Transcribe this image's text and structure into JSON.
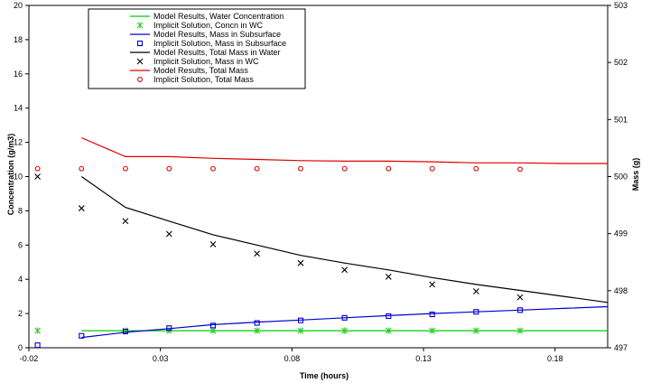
{
  "chart_data": {
    "type": "line",
    "xlabel": "Time (hours)",
    "ylabel_left": "Concentration (g/m3)",
    "ylabel_right": "Mass (g)",
    "xlim": [
      -0.02,
      0.2
    ],
    "ylim_left": [
      0,
      20
    ],
    "ylim_right": [
      497,
      503
    ],
    "x_ticks": [
      -0.02,
      0.03,
      0.08,
      0.13,
      0.18
    ],
    "x_tick_labels": [
      "-0.02",
      "0.03",
      "0.08",
      "0.13",
      "0.18"
    ],
    "y_left_ticks": [
      0,
      2,
      4,
      6,
      8,
      10,
      12,
      14,
      16,
      18,
      20
    ],
    "y_left_tick_labels": [
      "0",
      "2",
      "4",
      "6",
      "8",
      "10",
      "12",
      "14",
      "16",
      "18",
      "20"
    ],
    "y_right_ticks": [
      497,
      498,
      499,
      500,
      501,
      502,
      503
    ],
    "y_right_tick_labels": [
      "497",
      "498",
      "499",
      "500",
      "501",
      "502",
      "503"
    ],
    "legend_position": "top-left",
    "grid": false,
    "series": [
      {
        "name": "Model Results, Water Concentration",
        "kind": "line",
        "axis": "left",
        "color": "#00cc00",
        "x": [
          0,
          0.0167,
          0.0333,
          0.05,
          0.0667,
          0.0833,
          0.1,
          0.1167,
          0.1333,
          0.15,
          0.1667,
          0.1833,
          0.2
        ],
        "y": [
          1.0,
          1.0,
          1.0,
          1.0,
          1.0,
          1.0,
          1.0,
          1.0,
          1.0,
          1.0,
          1.0,
          1.0,
          1.0
        ]
      },
      {
        "name": "Implicit Solution, Concn in WC",
        "kind": "marker",
        "marker": "asterisk",
        "axis": "left",
        "color": "#33cc33",
        "x": [
          -0.0167,
          0.0167,
          0.0333,
          0.05,
          0.0667,
          0.0833,
          0.1,
          0.1167,
          0.1333,
          0.15,
          0.1667
        ],
        "y": [
          1.0,
          1.0,
          1.0,
          1.0,
          1.0,
          1.0,
          1.0,
          1.0,
          1.0,
          1.0,
          1.0
        ]
      },
      {
        "name": "Model Results, Mass in Subsurface",
        "kind": "line",
        "axis": "left",
        "color": "#0000cc",
        "x": [
          0,
          0.0167,
          0.0333,
          0.05,
          0.0667,
          0.0833,
          0.1,
          0.1167,
          0.1333,
          0.15,
          0.1667,
          0.1833,
          0.2
        ],
        "y": [
          0.6,
          0.9,
          1.12,
          1.35,
          1.5,
          1.62,
          1.75,
          1.88,
          2.0,
          2.1,
          2.2,
          2.3,
          2.4
        ]
      },
      {
        "name": "Implicit Solution, Mass in Subsurface",
        "kind": "marker",
        "marker": "square",
        "axis": "left",
        "color": "#0000cc",
        "x": [
          -0.0167,
          0,
          0.0167,
          0.0333,
          0.05,
          0.0667,
          0.0833,
          0.1,
          0.1167,
          0.1333,
          0.15,
          0.1667
        ],
        "y": [
          0.15,
          0.7,
          0.95,
          1.15,
          1.3,
          1.45,
          1.6,
          1.75,
          1.85,
          1.95,
          2.1,
          2.2
        ]
      },
      {
        "name": "Model Results, Total Mass in Water",
        "kind": "line",
        "axis": "left",
        "color": "#000000",
        "x": [
          0,
          0.0167,
          0.0333,
          0.05,
          0.0667,
          0.0833,
          0.1,
          0.1167,
          0.1333,
          0.15,
          0.1667,
          0.1833,
          0.2
        ],
        "y": [
          10.0,
          8.2,
          7.4,
          6.6,
          6.0,
          5.4,
          4.95,
          4.55,
          4.1,
          3.7,
          3.35,
          3.0,
          2.65
        ]
      },
      {
        "name": "Implicit Solution, Mass in WC",
        "kind": "marker",
        "marker": "x",
        "axis": "left",
        "color": "#000000",
        "x": [
          -0.0167,
          0,
          0.0167,
          0.0333,
          0.05,
          0.0667,
          0.0833,
          0.1,
          0.1167,
          0.1333,
          0.15,
          0.1667
        ],
        "y": [
          10.0,
          8.15,
          7.4,
          6.65,
          6.05,
          5.5,
          4.95,
          4.55,
          4.15,
          3.7,
          3.3,
          2.95
        ]
      },
      {
        "name": "Model Results, Total Mass",
        "kind": "line",
        "axis": "right",
        "color": "#dd0000",
        "x": [
          0,
          0.0167,
          0.0333,
          0.05,
          0.0667,
          0.0833,
          0.1,
          0.1167,
          0.1333,
          0.15,
          0.1667,
          0.1833,
          0.2
        ],
        "y": [
          500.68,
          500.35,
          500.35,
          500.32,
          500.3,
          500.28,
          500.27,
          500.27,
          500.26,
          500.24,
          500.24,
          500.23,
          500.23
        ]
      },
      {
        "name": "Implicit Solution, Total Mass",
        "kind": "marker",
        "marker": "circle",
        "axis": "right",
        "color": "#dd0000",
        "x": [
          -0.0167,
          0,
          0.0167,
          0.0333,
          0.05,
          0.0667,
          0.0833,
          0.1,
          0.1167,
          0.1333,
          0.15,
          0.1667
        ],
        "y": [
          500.14,
          500.14,
          500.14,
          500.14,
          500.14,
          500.14,
          500.14,
          500.14,
          500.14,
          500.14,
          500.14,
          500.13
        ]
      }
    ]
  }
}
